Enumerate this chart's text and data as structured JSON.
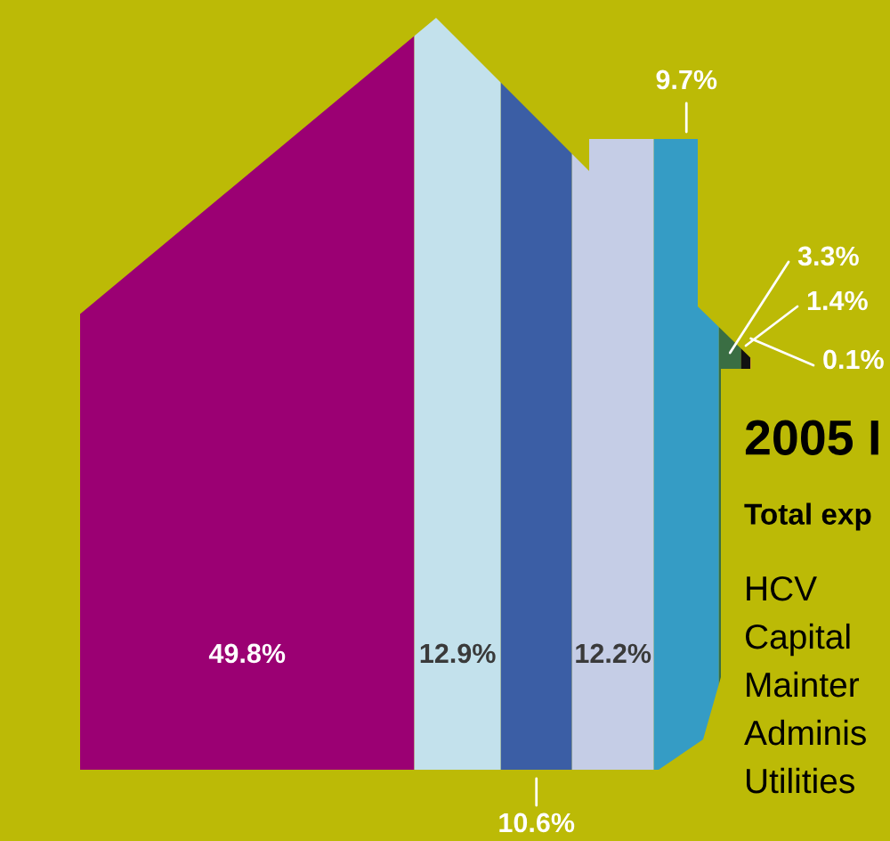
{
  "chart_data": {
    "type": "bar",
    "orientation": "horizontal",
    "stacked": true,
    "title": "2005 I",
    "subtitle": "Total exp",
    "categories": [
      null
    ],
    "series": [
      {
        "color": "#9b0073",
        "values": [
          49.8
        ],
        "value_labels": [
          "49.8%"
        ]
      },
      {
        "color": "#c3e1ec",
        "values": [
          12.9
        ],
        "value_labels": [
          "12.9%"
        ]
      },
      {
        "color": "#3b5ea5",
        "values": [
          10.6
        ],
        "value_labels": [
          "10.6%"
        ]
      },
      {
        "color": "#c5cde6",
        "values": [
          12.2
        ],
        "value_labels": [
          "12.2%"
        ]
      },
      {
        "color": "#359cc5",
        "values": [
          9.7
        ],
        "value_labels": [
          "9.7%"
        ]
      },
      {
        "color": "#3a6e43",
        "values": [
          3.3
        ],
        "value_labels": [
          "3.3%"
        ]
      },
      {
        "color": "#111111",
        "values": [
          1.4
        ],
        "value_labels": [
          "1.4%"
        ]
      },
      {
        "color": "#e0a030",
        "values": [
          0.1
        ],
        "value_labels": [
          "0.1%"
        ]
      }
    ],
    "annotations": [
      "HCV",
      "Capital",
      "Mainter",
      "Adminis",
      "Utilities"
    ]
  }
}
